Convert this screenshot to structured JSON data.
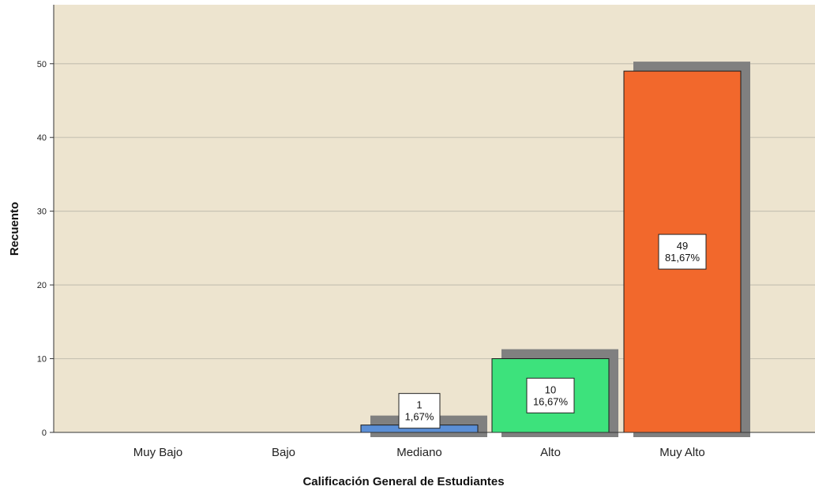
{
  "chart_data": {
    "type": "bar",
    "categories": [
      "Muy Bajo",
      "Bajo",
      "Mediano",
      "Alto",
      "Muy Alto"
    ],
    "values": [
      0,
      0,
      1,
      10,
      49
    ],
    "percents": [
      "",
      "",
      "1,67%",
      "16,67%",
      "81,67%"
    ],
    "colors": [
      "#5b8fd6",
      "#5b8fd6",
      "#5b8fd6",
      "#3de27c",
      "#f2682c"
    ],
    "background": "#ede4cf",
    "gridline_color": "#c7c2b3",
    "shadow_color": "#808080",
    "xlabel": "Calificación General de Estudiantes",
    "ylabel": "Recuento",
    "ylim": [
      0,
      58
    ],
    "yticks": [
      0,
      10,
      20,
      30,
      40,
      50
    ],
    "grid": true
  }
}
